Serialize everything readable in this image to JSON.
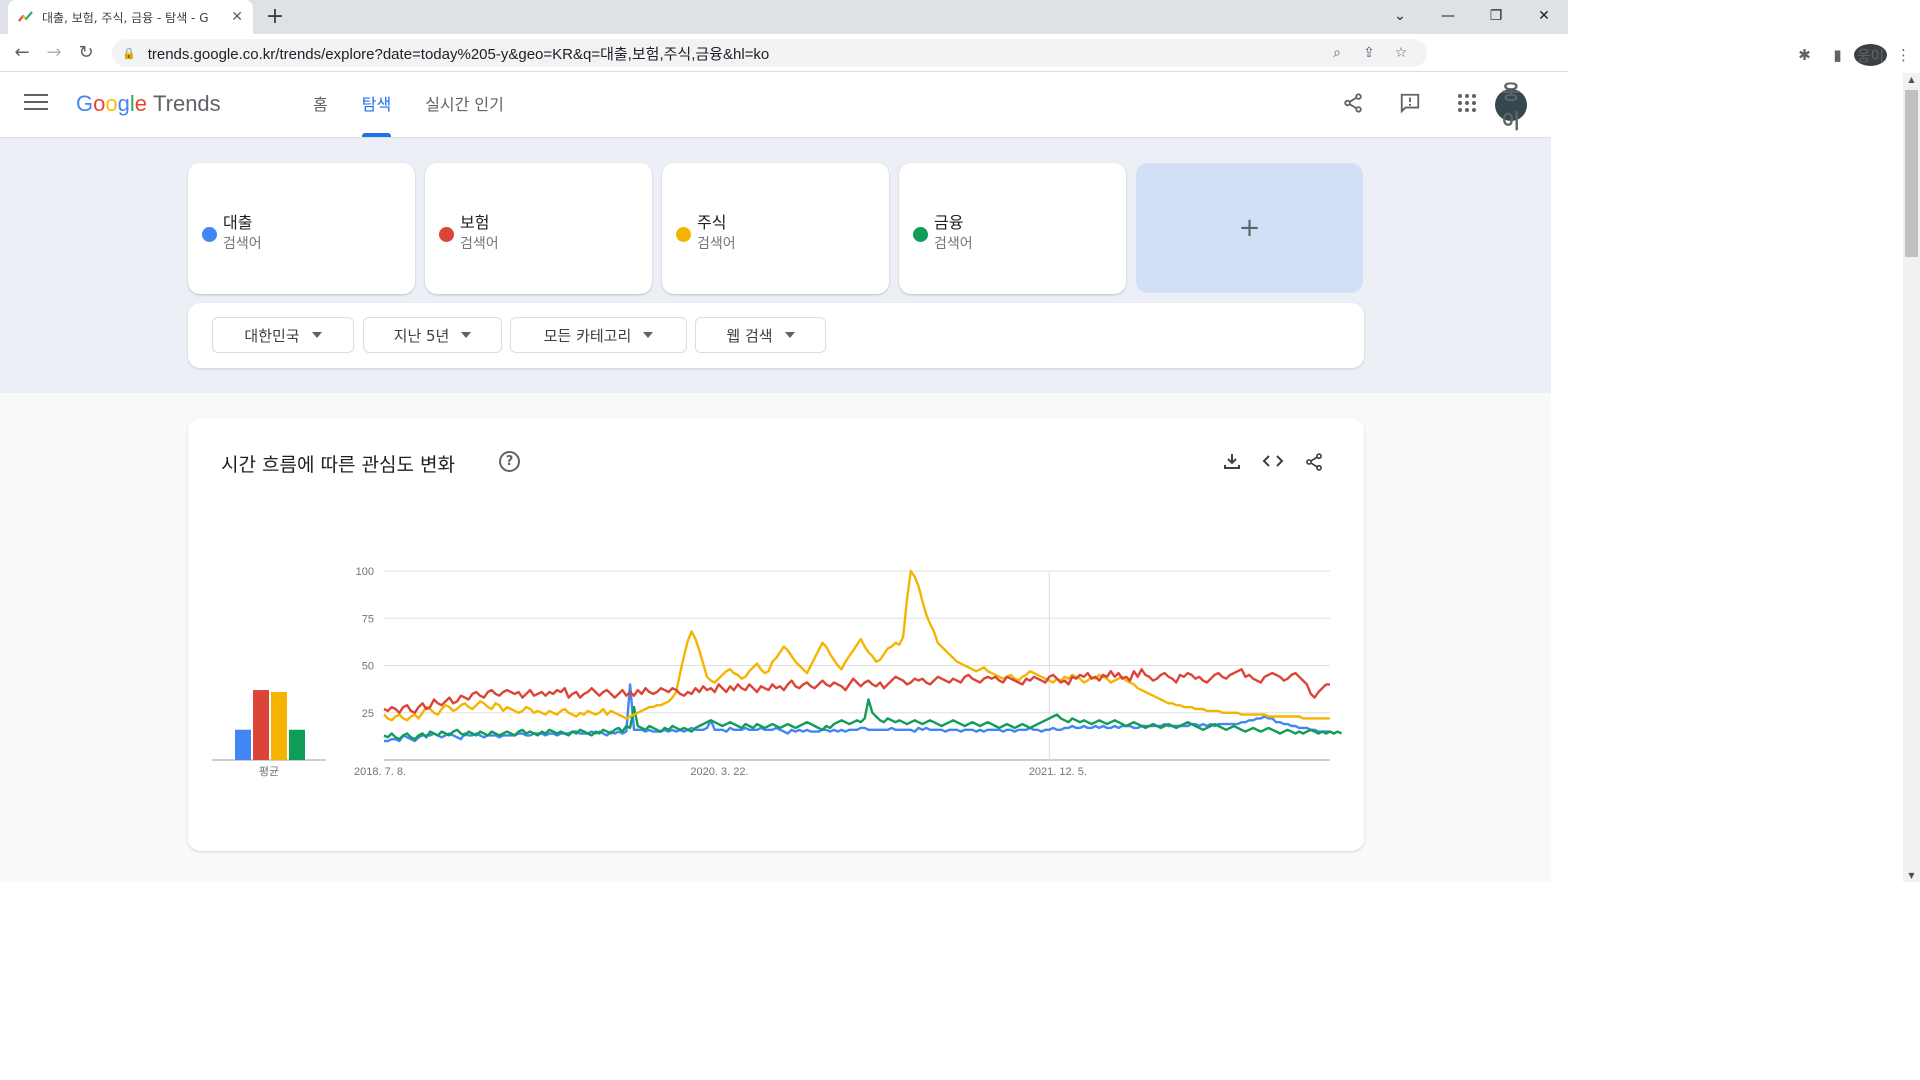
{
  "browser": {
    "tab_title": "대출, 보험, 주식, 금융 - 탐색 - G",
    "url": "trends.google.co.kr/trends/explore?date=today%205-y&geo=KR&q=대출,보험,주식,금융&hl=ko",
    "profile": "웅이"
  },
  "header": {
    "logo_google": [
      "G",
      "o",
      "o",
      "g",
      "l",
      "e"
    ],
    "logo_trends": "Trends",
    "nav": [
      "홈",
      "탐색",
      "실시간 인기"
    ],
    "active_nav": "탐색",
    "avatar": "웅이"
  },
  "terms": [
    {
      "name": "대출",
      "sub": "검색어",
      "color": "#4285f4"
    },
    {
      "name": "보험",
      "sub": "검색어",
      "color": "#db4437"
    },
    {
      "name": "주식",
      "sub": "검색어",
      "color": "#f4b400"
    },
    {
      "name": "금융",
      "sub": "검색어",
      "color": "#0f9d58"
    }
  ],
  "add_term": "+",
  "filters": {
    "region": "대한민국",
    "period": "지난 5년",
    "category": "모든 카테고리",
    "search_type": "웹 검색"
  },
  "chart_card": {
    "title": "시간 흐름에 따른 관심도 변화",
    "help": "?",
    "avg_label": "평균"
  },
  "chart_data": {
    "type": "line",
    "ylim": [
      0,
      100
    ],
    "yticks": [
      25,
      50,
      75,
      100
    ],
    "x_tick_labels": [
      "2018. 7. 8.",
      "2020. 3. 22.",
      "2021. 12. 5."
    ],
    "x_tick_positions": [
      0,
      88,
      176
    ],
    "averages": {
      "대출": 16,
      "보험": 37,
      "주식": 36,
      "금융": 16
    },
    "series": [
      {
        "name": "대출",
        "color": "#4285f4",
        "values": [
          10,
          10,
          11,
          11,
          10,
          13,
          12,
          11,
          10,
          12,
          13,
          13,
          13,
          14,
          13,
          12,
          13,
          14,
          13,
          12,
          11,
          14,
          13,
          13,
          14,
          13,
          12,
          13,
          13,
          13,
          12,
          13,
          13,
          13,
          13,
          14,
          14,
          13,
          13,
          14,
          14,
          14,
          13,
          14,
          14,
          13,
          14,
          14,
          14,
          15,
          15,
          14,
          14,
          14,
          15,
          14,
          15,
          14,
          13,
          15,
          14,
          15,
          14,
          15,
          40,
          16,
          16,
          16,
          15,
          16,
          15,
          15,
          15,
          16,
          15,
          16,
          15,
          16,
          15,
          16,
          17,
          16,
          16,
          16,
          17,
          21,
          16,
          16,
          16,
          15,
          17,
          16,
          16,
          16,
          17,
          16,
          16,
          16,
          17,
          16,
          16,
          16,
          17,
          16,
          15,
          14,
          16,
          15,
          16,
          15,
          16,
          15,
          15,
          15,
          16,
          16,
          15,
          16,
          15,
          16,
          15,
          16,
          16,
          16,
          17,
          17,
          16,
          16,
          16,
          16,
          16,
          16,
          17,
          16,
          16,
          16,
          16,
          16,
          15,
          17,
          16,
          17,
          16,
          16,
          16,
          16,
          15,
          16,
          16,
          16,
          15,
          16,
          16,
          16,
          15,
          16,
          15,
          16,
          16,
          16,
          16,
          15,
          16,
          16,
          15,
          16,
          16,
          16,
          17,
          16,
          16,
          15,
          16,
          16,
          17,
          16,
          16,
          17,
          17,
          18,
          17,
          17,
          18,
          17,
          17,
          18,
          17,
          18,
          17,
          17,
          18,
          17,
          18,
          18,
          18,
          17,
          17,
          18,
          18,
          18,
          18,
          18,
          18,
          19,
          18,
          18,
          18,
          18,
          18,
          18,
          19,
          19,
          18,
          19,
          18,
          19,
          18,
          19,
          19,
          19,
          19,
          19,
          19,
          20,
          20,
          21,
          21,
          22,
          22,
          23,
          22,
          22,
          20,
          20,
          19,
          19,
          18,
          18,
          17,
          17,
          17,
          16,
          16,
          15,
          15,
          15,
          15
        ]
      },
      {
        "name": "보험",
        "color": "#db4437",
        "values": [
          27,
          26,
          28,
          27,
          25,
          28,
          29,
          26,
          25,
          28,
          30,
          27,
          28,
          32,
          30,
          29,
          31,
          33,
          30,
          31,
          34,
          33,
          32,
          35,
          36,
          34,
          33,
          36,
          37,
          35,
          34,
          36,
          37,
          36,
          35,
          36,
          33,
          35,
          37,
          34,
          35,
          36,
          34,
          36,
          35,
          37,
          36,
          38,
          33,
          35,
          36,
          33,
          35,
          36,
          38,
          36,
          34,
          36,
          37,
          35,
          33,
          35,
          37,
          34,
          36,
          34,
          37,
          35,
          38,
          36,
          35,
          36,
          38,
          37,
          36,
          38,
          37,
          35,
          34,
          36,
          35,
          38,
          36,
          39,
          37,
          38,
          36,
          40,
          38,
          36,
          39,
          37,
          40,
          38,
          37,
          40,
          38,
          36,
          39,
          38,
          37,
          40,
          38,
          39,
          37,
          40,
          42,
          39,
          38,
          40,
          41,
          39,
          38,
          40,
          42,
          40,
          39,
          41,
          40,
          39,
          37,
          40,
          43,
          41,
          39,
          41,
          42,
          40,
          39,
          41,
          38,
          40,
          42,
          44,
          43,
          42,
          40,
          41,
          43,
          42,
          43,
          41,
          40,
          42,
          44,
          43,
          42,
          41,
          43,
          42,
          41,
          44,
          45,
          43,
          42,
          41,
          43,
          44,
          43,
          44,
          42,
          41,
          44,
          43,
          42,
          41,
          40,
          43,
          42,
          44,
          43,
          42,
          41,
          44,
          45,
          43,
          41,
          42,
          40,
          44,
          43,
          45,
          44,
          46,
          43,
          44,
          42,
          45,
          44,
          47,
          44,
          46,
          43,
          44,
          42,
          47,
          44,
          48,
          45,
          44,
          42,
          43,
          45,
          46,
          44,
          43,
          41,
          45,
          44,
          46,
          45,
          43,
          44,
          42,
          41,
          43,
          45,
          46,
          44,
          43,
          45,
          46,
          47,
          48,
          44,
          45,
          43,
          42,
          41,
          44,
          45,
          46,
          45,
          44,
          42,
          43,
          45,
          46,
          44,
          42,
          40,
          35,
          33,
          36,
          38,
          40,
          40
        ]
      },
      {
        "name": "주식",
        "color": "#f4b400",
        "values": [
          24,
          22,
          21,
          23,
          24,
          22,
          21,
          23,
          24,
          22,
          25,
          28,
          27,
          25,
          24,
          27,
          29,
          28,
          26,
          27,
          29,
          30,
          28,
          27,
          29,
          31,
          30,
          28,
          27,
          30,
          29,
          26,
          28,
          27,
          26,
          25,
          26,
          28,
          27,
          25,
          26,
          25,
          24,
          26,
          25,
          24,
          26,
          27,
          25,
          24,
          23,
          25,
          24,
          26,
          25,
          24,
          25,
          27,
          24,
          26,
          25,
          24,
          23,
          22,
          23,
          24,
          25,
          26,
          27,
          28,
          28,
          29,
          29,
          30,
          31,
          33,
          36,
          46,
          55,
          63,
          68,
          64,
          58,
          51,
          44,
          42,
          41,
          43,
          45,
          47,
          48,
          46,
          45,
          43,
          44,
          47,
          49,
          51,
          48,
          46,
          47,
          52,
          54,
          57,
          60,
          58,
          55,
          52,
          50,
          48,
          46,
          50,
          54,
          58,
          62,
          60,
          56,
          53,
          50,
          48,
          52,
          55,
          58,
          61,
          64,
          60,
          57,
          55,
          52,
          53,
          56,
          59,
          60,
          62,
          61,
          65,
          85,
          100,
          97,
          92,
          84,
          77,
          72,
          68,
          62,
          60,
          58,
          56,
          54,
          52,
          51,
          50,
          49,
          48,
          47,
          48,
          49,
          47,
          46,
          45,
          44,
          43,
          44,
          45,
          43,
          42,
          44,
          45,
          47,
          46,
          45,
          44,
          43,
          42,
          41,
          43,
          42,
          44,
          43,
          45,
          44,
          43,
          41,
          42,
          44,
          43,
          45,
          44,
          43,
          41,
          42,
          43,
          44,
          42,
          41,
          40,
          38,
          37,
          36,
          35,
          34,
          33,
          32,
          31,
          30,
          30,
          29,
          29,
          28,
          28,
          28,
          27,
          27,
          27,
          26,
          26,
          26,
          26,
          25,
          25,
          25,
          25,
          25,
          24,
          24,
          24,
          24,
          24,
          24,
          24,
          23,
          23,
          23,
          23,
          23,
          23,
          23,
          23,
          23,
          22,
          22,
          22,
          22,
          22,
          22,
          22,
          22
        ]
      },
      {
        "name": "금융",
        "color": "#0f9d58",
        "values": [
          13,
          12,
          14,
          12,
          11,
          13,
          14,
          12,
          11,
          13,
          14,
          12,
          15,
          14,
          13,
          15,
          14,
          13,
          15,
          16,
          14,
          13,
          15,
          14,
          13,
          15,
          14,
          13,
          15,
          14,
          13,
          14,
          15,
          14,
          13,
          15,
          16,
          14,
          15,
          14,
          13,
          15,
          14,
          16,
          15,
          14,
          15,
          14,
          13,
          15,
          14,
          16,
          15,
          14,
          13,
          15,
          14,
          16,
          15,
          14,
          16,
          17,
          15,
          18,
          17,
          28,
          18,
          17,
          16,
          18,
          17,
          16,
          15,
          17,
          16,
          18,
          17,
          16,
          17,
          16,
          15,
          17,
          18,
          19,
          20,
          21,
          20,
          19,
          18,
          19,
          20,
          19,
          18,
          17,
          19,
          18,
          17,
          19,
          18,
          17,
          18,
          19,
          18,
          17,
          18,
          19,
          18,
          17,
          18,
          19,
          20,
          19,
          18,
          17,
          16,
          18,
          17,
          19,
          20,
          21,
          20,
          19,
          20,
          21,
          20,
          22,
          32,
          25,
          23,
          21,
          20,
          22,
          21,
          20,
          21,
          20,
          19,
          20,
          21,
          20,
          19,
          20,
          21,
          20,
          19,
          18,
          19,
          20,
          21,
          20,
          19,
          18,
          19,
          20,
          19,
          18,
          19,
          20,
          19,
          18,
          17,
          18,
          19,
          18,
          17,
          18,
          19,
          18,
          17,
          18,
          19,
          20,
          21,
          22,
          23,
          24,
          22,
          21,
          20,
          22,
          21,
          20,
          21,
          20,
          19,
          20,
          21,
          20,
          19,
          20,
          21,
          20,
          19,
          18,
          19,
          20,
          19,
          18,
          17,
          18,
          19,
          18,
          17,
          18,
          19,
          18,
          17,
          18,
          19,
          20,
          19,
          18,
          17,
          16,
          17,
          18,
          19,
          18,
          17,
          16,
          17,
          18,
          17,
          16,
          15,
          16,
          17,
          16,
          15,
          16,
          17,
          16,
          15,
          14,
          15,
          16,
          15,
          14,
          15,
          14,
          15,
          16,
          15,
          14,
          15,
          14,
          15,
          14,
          15,
          14
        ]
      }
    ]
  }
}
